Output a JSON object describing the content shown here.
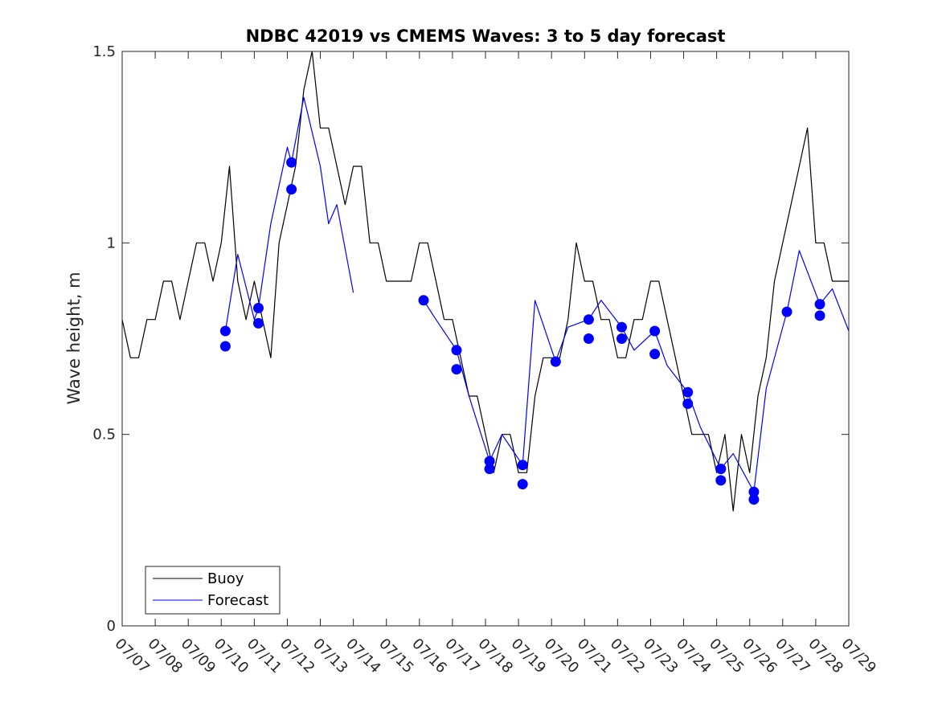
{
  "chart_data": {
    "type": "line",
    "title": "NDBC 42019 vs CMEMS Waves: 3 to 5 day forecast",
    "xlabel": "",
    "ylabel": "Wave height, m",
    "ylim": [
      0,
      1.5
    ],
    "yticks": [
      0,
      0.5,
      1,
      1.5
    ],
    "ytick_labels": [
      "0",
      "0.5",
      "1",
      "1.5"
    ],
    "xlim": [
      "07/07",
      "07/29"
    ],
    "xtick_labels": [
      "07/07",
      "07/08",
      "07/09",
      "07/10",
      "07/11",
      "07/12",
      "07/13",
      "07/14",
      "07/15",
      "07/16",
      "07/17",
      "07/18",
      "07/19",
      "07/20",
      "07/21",
      "07/22",
      "07/23",
      "07/24",
      "07/25",
      "07/26",
      "07/27",
      "07/28",
      "07/29"
    ],
    "grid": false,
    "legend": {
      "location": "bottom-left",
      "entries": [
        "Buoy",
        "Forecast"
      ]
    },
    "colors": {
      "buoy": "#000000",
      "forecast": "#0000ff"
    },
    "series": [
      {
        "name": "Buoy",
        "color": "#000000",
        "x": [
          "07/07 00:00",
          "07/07 06:00",
          "07/07 12:00",
          "07/07 18:00",
          "07/08 00:00",
          "07/08 06:00",
          "07/08 12:00",
          "07/08 18:00",
          "07/09 00:00",
          "07/09 06:00",
          "07/09 12:00",
          "07/09 18:00",
          "07/10 00:00",
          "07/10 06:00",
          "07/10 12:00",
          "07/10 18:00",
          "07/11 00:00",
          "07/11 06:00",
          "07/11 12:00",
          "07/11 18:00",
          "07/12 00:00",
          "07/12 06:00",
          "07/12 12:00",
          "07/12 18:00",
          "07/13 00:00",
          "07/13 06:00",
          "07/13 12:00",
          "07/13 18:00",
          "07/14 00:00",
          "07/14 06:00",
          "07/14 12:00",
          "07/14 18:00",
          "07/15 00:00",
          "07/15 06:00",
          "07/15 12:00",
          "07/15 18:00",
          "07/16 00:00",
          "07/16 06:00",
          "07/16 12:00",
          "07/16 18:00",
          "07/17 00:00",
          "07/17 06:00",
          "07/17 12:00",
          "07/17 18:00",
          "07/18 00:00",
          "07/18 06:00",
          "07/18 12:00",
          "07/18 18:00",
          "07/19 00:00",
          "07/19 06:00",
          "07/19 12:00",
          "07/19 18:00",
          "07/20 00:00",
          "07/20 06:00",
          "07/20 12:00",
          "07/20 18:00",
          "07/21 00:00",
          "07/21 06:00",
          "07/21 12:00",
          "07/21 18:00",
          "07/22 00:00",
          "07/22 06:00",
          "07/22 12:00",
          "07/22 18:00",
          "07/23 00:00",
          "07/23 06:00",
          "07/23 12:00",
          "07/23 18:00",
          "07/24 00:00",
          "07/24 06:00",
          "07/24 12:00",
          "07/24 18:00",
          "07/25 00:00",
          "07/25 06:00",
          "07/25 12:00",
          "07/25 18:00",
          "07/26 00:00",
          "07/26 06:00",
          "07/26 12:00",
          "07/26 18:00",
          "07/27 00:00",
          "07/27 06:00",
          "07/27 12:00",
          "07/27 18:00",
          "07/28 00:00",
          "07/28 06:00",
          "07/28 12:00",
          "07/28 18:00",
          "07/29 00:00"
        ],
        "y": [
          0.8,
          0.7,
          0.7,
          0.8,
          0.8,
          0.9,
          0.9,
          0.8,
          0.9,
          1.0,
          1.0,
          0.9,
          1.0,
          1.2,
          0.9,
          0.8,
          0.9,
          0.8,
          0.7,
          1.0,
          1.1,
          1.2,
          1.4,
          1.5,
          1.3,
          1.3,
          1.2,
          1.1,
          1.2,
          1.2,
          1.0,
          1.0,
          0.9,
          0.9,
          0.9,
          0.9,
          1.0,
          1.0,
          0.9,
          0.8,
          0.8,
          0.7,
          0.6,
          0.6,
          0.5,
          0.4,
          0.5,
          0.5,
          0.4,
          0.4,
          0.6,
          0.7,
          0.7,
          0.7,
          0.8,
          1.0,
          0.9,
          0.9,
          0.8,
          0.8,
          0.7,
          0.7,
          0.8,
          0.8,
          0.9,
          0.9,
          0.8,
          0.7,
          0.6,
          0.5,
          0.5,
          0.5,
          0.4,
          0.5,
          0.3,
          0.5,
          0.4,
          0.6,
          0.7,
          0.9,
          1.0,
          1.1,
          1.2,
          1.3,
          1.0,
          1.0,
          0.9,
          0.9,
          0.9
        ]
      },
      {
        "name": "Forecast",
        "color": "#0000ff",
        "x": [
          "07/10 03:00",
          "07/10 12:00",
          "07/11 00:00",
          "07/11 03:00",
          "07/11 12:00",
          "07/12 00:00",
          "07/12 03:00",
          "07/12 12:00",
          "07/13 00:00",
          "07/13 06:00",
          "07/13 12:00",
          "07/14 00:00",
          "07/14 06:00",
          "07/15 00:00",
          "07/16 03:00",
          "07/16 12:00",
          "07/17 03:00",
          "07/17 12:00",
          "07/18 03:00",
          "07/18 12:00",
          "07/19 03:00",
          "07/19 12:00",
          "07/20 03:00",
          "07/20 12:00",
          "07/21 03:00",
          "07/21 12:00",
          "07/22 03:00",
          "07/22 12:00",
          "07/23 03:00",
          "07/23 12:00",
          "07/24 03:00",
          "07/24 12:00",
          "07/25 03:00",
          "07/25 12:00",
          "07/26 03:00",
          "07/26 12:00",
          "07/27 03:00",
          "07/27 12:00",
          "07/28 03:00",
          "07/28 12:00",
          "07/29 00:00"
        ],
        "y": [
          0.77,
          0.97,
          0.8,
          0.83,
          1.05,
          1.25,
          1.21,
          1.38,
          1.2,
          1.05,
          1.1,
          0.87,
          null,
          null,
          0.85,
          0.8,
          0.72,
          0.6,
          0.43,
          0.5,
          0.42,
          0.85,
          0.69,
          0.78,
          0.8,
          0.85,
          0.78,
          0.72,
          0.77,
          0.68,
          0.61,
          0.52,
          0.41,
          0.45,
          0.35,
          0.62,
          0.82,
          0.98,
          0.84,
          0.88,
          0.77
        ]
      }
    ],
    "markers": {
      "color": "#0000ff",
      "x": [
        "07/10 03:00",
        "07/10 03:00",
        "07/11 03:00",
        "07/11 03:00",
        "07/12 03:00",
        "07/12 03:00",
        "07/16 03:00",
        "07/17 03:00",
        "07/17 03:00",
        "07/18 03:00",
        "07/18 03:00",
        "07/19 03:00",
        "07/19 03:00",
        "07/20 03:00",
        "07/21 03:00",
        "07/21 03:00",
        "07/22 03:00",
        "07/22 03:00",
        "07/23 03:00",
        "07/23 03:00",
        "07/24 03:00",
        "07/24 03:00",
        "07/25 03:00",
        "07/25 03:00",
        "07/26 03:00",
        "07/26 03:00",
        "07/27 03:00",
        "07/28 03:00",
        "07/28 03:00"
      ],
      "y": [
        0.77,
        0.73,
        0.83,
        0.79,
        1.21,
        1.14,
        0.85,
        0.72,
        0.67,
        0.43,
        0.41,
        0.42,
        0.37,
        0.69,
        0.8,
        0.75,
        0.78,
        0.75,
        0.77,
        0.71,
        0.61,
        0.58,
        0.41,
        0.38,
        0.35,
        0.33,
        0.82,
        0.84,
        0.81
      ]
    }
  }
}
